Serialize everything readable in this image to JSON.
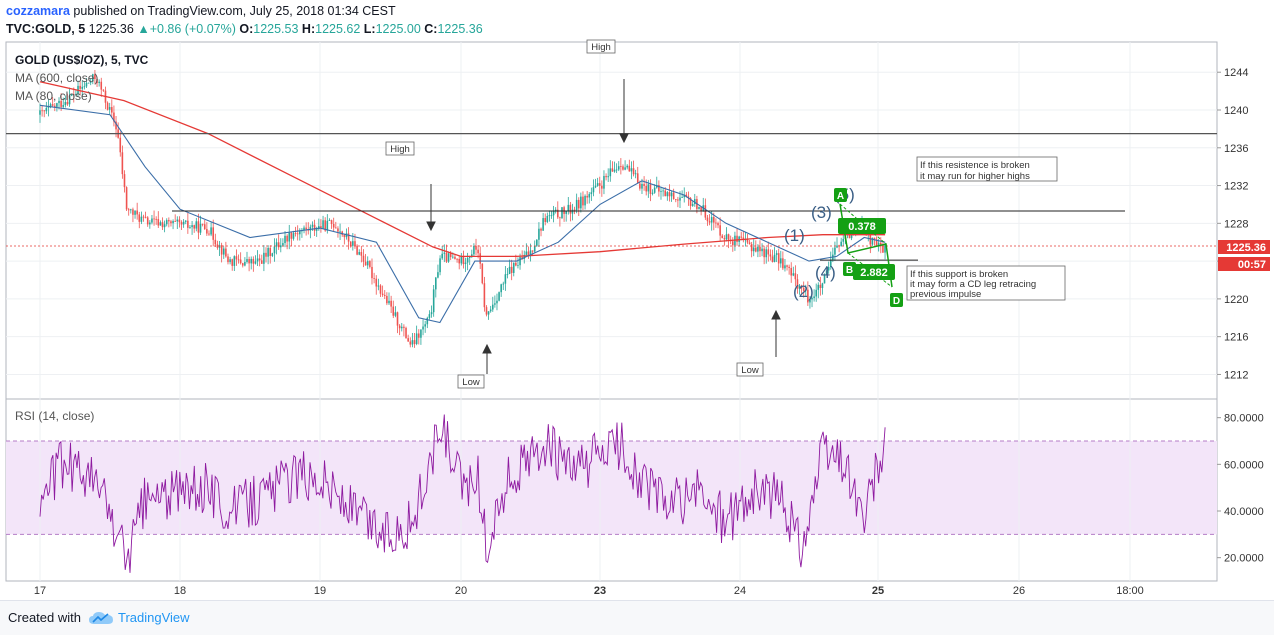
{
  "header": {
    "author": "cozzamara",
    "published": " published on TradingView.com, July 25, 2018 01:34 CEST",
    "symbol": "TVC:GOLD, 5",
    "last": "1225.36",
    "change": "+0.86 (+0.07%)",
    "o_label": "O:",
    "o": "1225.53",
    "h_label": "H:",
    "h": "1225.62",
    "l_label": "L:",
    "l": "1225.00",
    "c_label": "C:",
    "c": "1225.36"
  },
  "legend": {
    "title": "GOLD (US$/OZ), 5, TVC",
    "ma600": "MA (600, close)",
    "ma80": "MA (80, close)",
    "rsi": "RSI (14, close)"
  },
  "annotations": {
    "high_top": "High",
    "high_left": "High",
    "low_left": "Low",
    "low_right": "Low",
    "resist_note": [
      "If this resistence is broken",
      "it may run for higher highs"
    ],
    "support_note": [
      "If this support is broken",
      "it may form a CD leg retracing",
      "previous impulse"
    ],
    "wave_labels": [
      "(1)",
      "(2)",
      "(3)",
      "(4)",
      "(5)"
    ],
    "pattern_points": [
      "A",
      "B",
      "D"
    ],
    "ratio_ab": "0.378",
    "ratio_bd": "2.882"
  },
  "price_tag": {
    "value": "1225.36",
    "countdown": "00:57"
  },
  "footer": {
    "created": "Created with",
    "brand": "TradingView"
  },
  "colors": {
    "up": "#26a69a",
    "down": "#ef5350",
    "ma600": "#e53935",
    "ma80": "#3b6ea8",
    "rsi": "#8e1aa0",
    "rsi_band": "#f3e5f9",
    "pattern": "#14a014",
    "price_tag": "#e53935"
  },
  "chart_data": [
    {
      "type": "line",
      "series": [
        {
          "name": "GOLD (US$/OZ), 5, TVC",
          "points": [
            [
              17.0,
              1239.5
            ],
            [
              17.2,
              1241.2
            ],
            [
              17.4,
              1243.5
            ],
            [
              17.55,
              1238.0
            ],
            [
              17.62,
              1229.5
            ],
            [
              17.75,
              1228.2
            ],
            [
              18.0,
              1227.8
            ],
            [
              18.2,
              1227.5
            ],
            [
              18.35,
              1224.0
            ],
            [
              18.55,
              1223.8
            ],
            [
              18.8,
              1227.0
            ],
            [
              19.1,
              1228.0
            ],
            [
              19.3,
              1224.5
            ],
            [
              19.5,
              1219.0
            ],
            [
              19.65,
              1215.0
            ],
            [
              19.78,
              1218.0
            ],
            [
              19.85,
              1224.5
            ],
            [
              20.0,
              1224.0
            ],
            [
              20.12,
              1225.5
            ],
            [
              20.18,
              1218.0
            ],
            [
              20.35,
              1223.0
            ],
            [
              20.5,
              1225.0
            ],
            [
              20.6,
              1228.5
            ],
            [
              20.8,
              1229.5
            ],
            [
              21.0,
              1232.0
            ],
            [
              21.15,
              1234.5
            ],
            [
              21.3,
              1232.0
            ],
            [
              21.5,
              1231.0
            ],
            [
              21.7,
              1230.0
            ],
            [
              21.9,
              1226.5
            ],
            [
              22.1,
              1225.5
            ],
            [
              22.3,
              1224.0
            ],
            [
              22.5,
              1220.0
            ],
            [
              22.6,
              1221.5
            ],
            [
              22.7,
              1225.5
            ],
            [
              22.8,
              1227.0
            ],
            [
              22.88,
              1228.5
            ],
            [
              22.95,
              1226.0
            ],
            [
              23.05,
              1225.3
            ]
          ]
        },
        {
          "name": "MA (600, close)",
          "points": [
            [
              17.0,
              1243.0
            ],
            [
              17.6,
              1241.0
            ],
            [
              18.2,
              1237.5
            ],
            [
              18.8,
              1233.0
            ],
            [
              19.4,
              1228.5
            ],
            [
              19.8,
              1225.5
            ],
            [
              20.0,
              1224.5
            ],
            [
              20.4,
              1224.5
            ],
            [
              21.0,
              1225.0
            ],
            [
              21.6,
              1225.8
            ],
            [
              22.2,
              1226.5
            ],
            [
              22.6,
              1226.8
            ],
            [
              23.05,
              1226.8
            ]
          ]
        },
        {
          "name": "MA (80, close)",
          "points": [
            [
              17.0,
              1240.5
            ],
            [
              17.5,
              1239.5
            ],
            [
              17.75,
              1234.0
            ],
            [
              18.0,
              1229.5
            ],
            [
              18.5,
              1226.5
            ],
            [
              19.0,
              1227.5
            ],
            [
              19.4,
              1226.0
            ],
            [
              19.7,
              1218.0
            ],
            [
              19.85,
              1217.5
            ],
            [
              20.1,
              1224.0
            ],
            [
              20.4,
              1224.0
            ],
            [
              20.7,
              1226.0
            ],
            [
              21.0,
              1230.0
            ],
            [
              21.3,
              1232.5
            ],
            [
              21.6,
              1231.0
            ],
            [
              21.9,
              1228.0
            ],
            [
              22.2,
              1226.0
            ],
            [
              22.5,
              1224.0
            ],
            [
              22.7,
              1224.5
            ],
            [
              22.9,
              1226.5
            ],
            [
              23.05,
              1226.0
            ]
          ]
        }
      ],
      "levels": [
        1237.5,
        1229.3,
        1224.1
      ],
      "x_ticks": [
        "17",
        "18",
        "19",
        "20",
        "23",
        "24",
        "25",
        "26",
        "18:00"
      ],
      "y_ticks": [
        1212,
        1216,
        1220,
        1224,
        1228,
        1232,
        1236,
        1240,
        1244
      ],
      "ylim": [
        1209.4,
        1247.2
      ]
    },
    {
      "type": "line",
      "series": [
        {
          "name": "RSI (14, close)",
          "points": [
            [
              17.0,
              45
            ],
            [
              17.15,
              60
            ],
            [
              17.3,
              58
            ],
            [
              17.45,
              48
            ],
            [
              17.55,
              30
            ],
            [
              17.62,
              20
            ],
            [
              17.75,
              45
            ],
            [
              18.0,
              48
            ],
            [
              18.2,
              50
            ],
            [
              18.35,
              40
            ],
            [
              18.55,
              45
            ],
            [
              18.8,
              55
            ],
            [
              19.0,
              55
            ],
            [
              19.2,
              42
            ],
            [
              19.45,
              30
            ],
            [
              19.65,
              35
            ],
            [
              19.8,
              62
            ],
            [
              19.85,
              78
            ],
            [
              20.0,
              50
            ],
            [
              20.12,
              55
            ],
            [
              20.18,
              25
            ],
            [
              20.35,
              55
            ],
            [
              20.5,
              60
            ],
            [
              20.6,
              70
            ],
            [
              20.8,
              55
            ],
            [
              21.0,
              65
            ],
            [
              21.15,
              68
            ],
            [
              21.3,
              52
            ],
            [
              21.5,
              42
            ],
            [
              21.7,
              48
            ],
            [
              21.9,
              35
            ],
            [
              22.1,
              48
            ],
            [
              22.3,
              45
            ],
            [
              22.45,
              25
            ],
            [
              22.6,
              65
            ],
            [
              22.75,
              62
            ],
            [
              22.82,
              50
            ],
            [
              22.9,
              35
            ],
            [
              22.98,
              55
            ],
            [
              23.05,
              65
            ]
          ]
        }
      ],
      "bands": [
        30,
        70
      ],
      "y_ticks": [
        20,
        40,
        60,
        80
      ],
      "ylim": [
        10,
        88
      ]
    }
  ]
}
